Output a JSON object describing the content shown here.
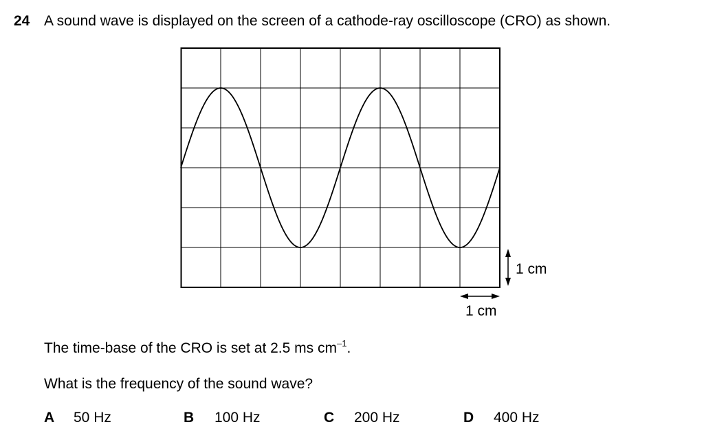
{
  "question": {
    "number": "24",
    "text": "A sound wave is displayed on the screen of a cathode-ray oscilloscope (CRO) as shown."
  },
  "figure": {
    "vertical_scale_label": "1 cm",
    "horizontal_scale_label": "1 cm"
  },
  "timebase": {
    "prefix": "The time-base of the CRO is set at 2.5 ms cm",
    "exponent": "–1",
    "suffix": "."
  },
  "prompt": "What is the frequency of the sound wave?",
  "options": [
    {
      "letter": "A",
      "value": "50 Hz"
    },
    {
      "letter": "B",
      "value": "100 Hz"
    },
    {
      "letter": "C",
      "value": "200 Hz"
    },
    {
      "letter": "D",
      "value": "400 Hz"
    }
  ]
}
